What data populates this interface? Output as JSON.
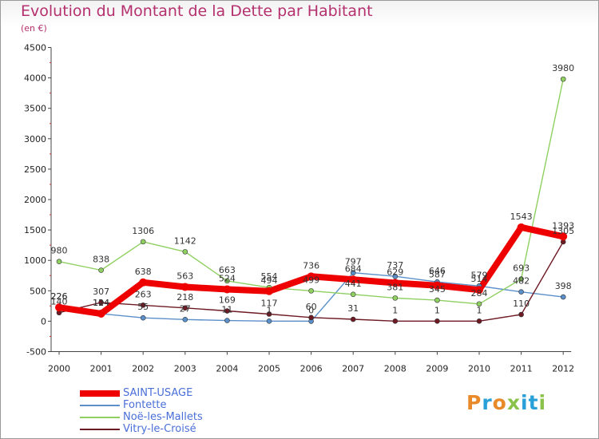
{
  "header": {
    "title": "Evolution du Montant de la Dette par Habitant",
    "unit": "(en €)"
  },
  "logo": {
    "text": "Proxiti",
    "letter_colors": [
      "#e88a2a",
      "#2aa0d8",
      "#e88a2a",
      "#8bc34a",
      "#2aa0d8",
      "#2aa0d8",
      "#8bc34a"
    ]
  },
  "chart_data": {
    "type": "line",
    "categories": [
      "2000",
      "2001",
      "2002",
      "2003",
      "2004",
      "2005",
      "2006",
      "2007",
      "2008",
      "2009",
      "2010",
      "2011",
      "2012"
    ],
    "ylim": [
      -500,
      4500
    ],
    "yticks": [
      -500,
      0,
      500,
      1000,
      1500,
      2000,
      2500,
      3000,
      3500,
      4000,
      4500
    ],
    "grid": false,
    "legend_position": "bottom-left",
    "series": [
      {
        "name": "Fontette",
        "color": "#5b8fc9",
        "values": [
          226,
          124,
          55,
          27,
          11,
          1,
          0,
          797,
          737,
          646,
          579,
          482,
          398
        ]
      },
      {
        "name": "Noë-les-Mallets",
        "color": "#8fd061",
        "values": [
          980,
          838,
          1306,
          1142,
          663,
          554,
          499,
          441,
          381,
          345,
          284,
          693,
          3980
        ]
      },
      {
        "name": "Vitry-le-Croisé",
        "color": "#6e1a24",
        "values": [
          140,
          307,
          263,
          218,
          169,
          117,
          60,
          31,
          1,
          1,
          1,
          110,
          1305
        ]
      },
      {
        "name": "SAINT-USAGE",
        "color": "#ee0000",
        "values": [
          226,
          124,
          638,
          563,
          524,
          494,
          736,
          684,
          629,
          587,
          514,
          1543,
          1393
        ]
      }
    ]
  }
}
